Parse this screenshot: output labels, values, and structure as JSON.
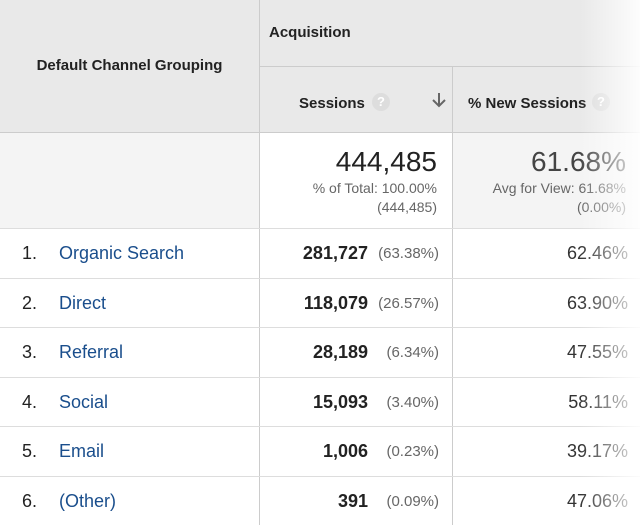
{
  "header": {
    "dimension": "Default Channel Grouping",
    "group": "Acquisition",
    "columns": [
      "Sessions",
      "% New Sessions"
    ],
    "help": "?"
  },
  "totals": {
    "sessions": "444,485",
    "sessions_note": "% of Total: 100.00%",
    "sessions_sub": "(444,485)",
    "new_sessions": "61.68%",
    "new_sessions_note": "Avg for View: 61.68%",
    "new_sessions_sub": "(0.00%)"
  },
  "rows": [
    {
      "rank": "1.",
      "channel": "Organic Search",
      "sessions": "281,727",
      "share": "(63.38%)",
      "new_sessions": "62.46%"
    },
    {
      "rank": "2.",
      "channel": "Direct",
      "sessions": "118,079",
      "share": "(26.57%)",
      "new_sessions": "63.90%"
    },
    {
      "rank": "3.",
      "channel": "Referral",
      "sessions": "28,189",
      "share": "(6.34%)",
      "new_sessions": "47.55%"
    },
    {
      "rank": "4.",
      "channel": "Social",
      "sessions": "15,093",
      "share": "(3.40%)",
      "new_sessions": "58.11%"
    },
    {
      "rank": "5.",
      "channel": "Email",
      "sessions": "1,006",
      "share": "(0.23%)",
      "new_sessions": "39.17%"
    },
    {
      "rank": "6.",
      "channel": "(Other)",
      "sessions": "391",
      "share": "(0.09%)",
      "new_sessions": "47.06%"
    }
  ]
}
